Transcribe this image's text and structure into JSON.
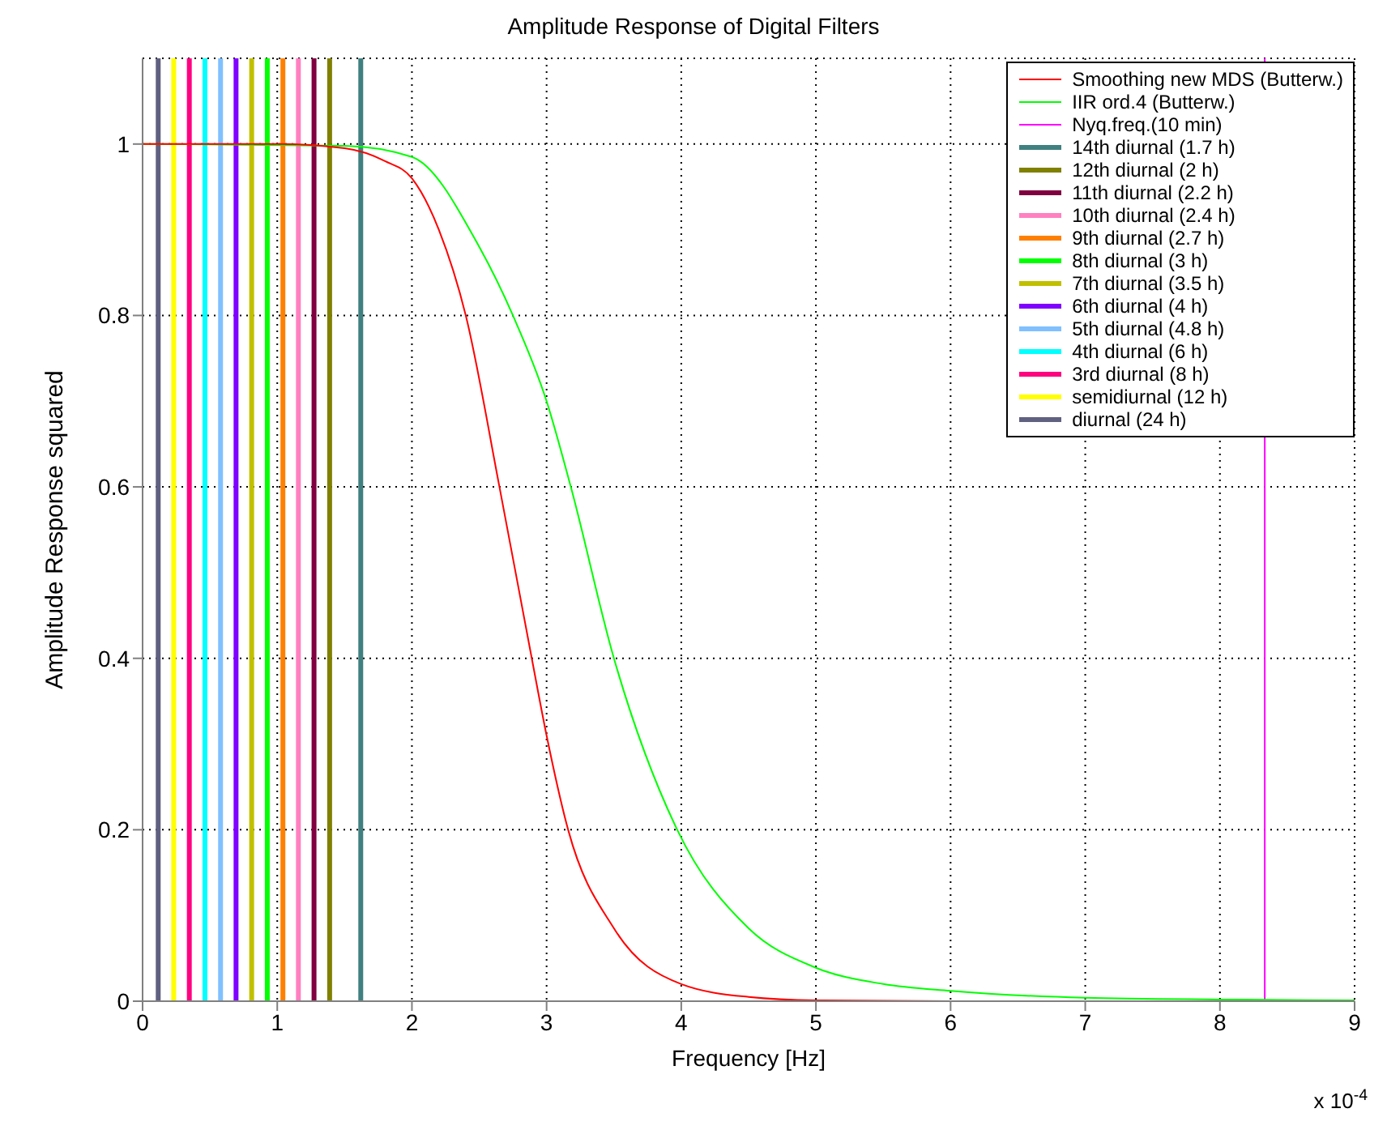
{
  "chart_data": {
    "type": "line",
    "title": "Amplitude Response of Digital Filters",
    "xlabel": "Frequency [Hz]",
    "ylabel": "Amplitude Response squared",
    "annotations": [
      "x 10$^{-4}$"
    ],
    "xlim": [
      0,
      9
    ],
    "xticks": [
      0,
      1,
      2,
      3,
      4,
      5,
      6,
      7,
      8,
      9
    ],
    "ylim": [
      0,
      1.1
    ],
    "yticks": [
      0,
      0.2,
      0.4,
      0.6,
      0.8,
      1
    ],
    "grid": true,
    "legend": "top right",
    "line_style": "solid",
    "series": [
      {
        "name": "Smoothing new MDS (Butterw.)",
        "color": "#ff0000",
        "x": [
          0,
          1,
          1.5,
          1.8,
          2,
          2.2,
          2.4,
          2.65,
          2.89,
          3,
          3.16,
          3.5,
          4,
          4.5,
          5,
          6
        ],
        "values": [
          1,
          1,
          0.995,
          0.98,
          0.96,
          0.9,
          0.8,
          0.6,
          0.4,
          0.31,
          0.2,
          0.085,
          0.02,
          0.005,
          0.001,
          0
        ]
      },
      {
        "name": "IIR ord.4 (Butterw.)",
        "color": "#00ff00",
        "x": [
          0,
          1.5,
          2,
          2.5,
          2.75,
          3,
          3.18,
          3.5,
          3.97,
          4.5,
          5,
          5.5,
          6,
          7,
          8,
          9
        ],
        "values": [
          1,
          0.998,
          0.985,
          0.88,
          0.8,
          0.7,
          0.6,
          0.4,
          0.2,
          0.085,
          0.039,
          0.02,
          0.012,
          0.004,
          0.002,
          0.001
        ]
      },
      {
        "name": "Nyq.freq.(10 min)",
        "color": "#ff00ff",
        "x": [
          8.333,
          8.333
        ],
        "values": [
          0,
          1.1
        ]
      },
      {
        "name": "14th diurnal (1.7 h)",
        "color": "#408080",
        "x": [
          1.62,
          1.62
        ],
        "values": [
          0,
          1.1
        ]
      },
      {
        "name": "12th diurnal (2 h)",
        "color": "#808000",
        "x": [
          1.389,
          1.389
        ],
        "values": [
          0,
          1.1
        ]
      },
      {
        "name": "11th diurnal (2.2 h)",
        "color": "#800040",
        "x": [
          1.273,
          1.273
        ],
        "values": [
          0,
          1.1
        ]
      },
      {
        "name": "10th diurnal (2.4 h)",
        "color": "#ff80c0",
        "x": [
          1.157,
          1.157
        ],
        "values": [
          0,
          1.1
        ]
      },
      {
        "name": "9th diurnal (2.7 h)",
        "color": "#ff8000",
        "x": [
          1.042,
          1.042
        ],
        "values": [
          0,
          1.1
        ]
      },
      {
        "name": "8th diurnal (3 h)",
        "color": "#00ff00",
        "x": [
          0.926,
          0.926
        ],
        "values": [
          0,
          1.1
        ]
      },
      {
        "name": "7th diurnal (3.5 h)",
        "color": "#c0c000",
        "x": [
          0.81,
          0.81
        ],
        "values": [
          0,
          1.1
        ]
      },
      {
        "name": "6th diurnal (4 h)",
        "color": "#8000ff",
        "x": [
          0.694,
          0.694
        ],
        "values": [
          0,
          1.1
        ]
      },
      {
        "name": "5th diurnal (4.8 h)",
        "color": "#80c0ff",
        "x": [
          0.579,
          0.579
        ],
        "values": [
          0,
          1.1
        ]
      },
      {
        "name": "4th diurnal (6 h)",
        "color": "#00ffff",
        "x": [
          0.463,
          0.463
        ],
        "values": [
          0,
          1.1
        ]
      },
      {
        "name": "3rd diurnal (8 h)",
        "color": "#ff0080",
        "x": [
          0.347,
          0.347
        ],
        "values": [
          0,
          1.1
        ]
      },
      {
        "name": "semidiurnal (12 h)",
        "color": "#ffff00",
        "x": [
          0.231,
          0.231
        ],
        "values": [
          0,
          1.1
        ]
      },
      {
        "name": "diurnal (24 h)",
        "color": "#606080",
        "x": [
          0.116,
          0.116
        ],
        "values": [
          0,
          1.1
        ]
      }
    ]
  }
}
